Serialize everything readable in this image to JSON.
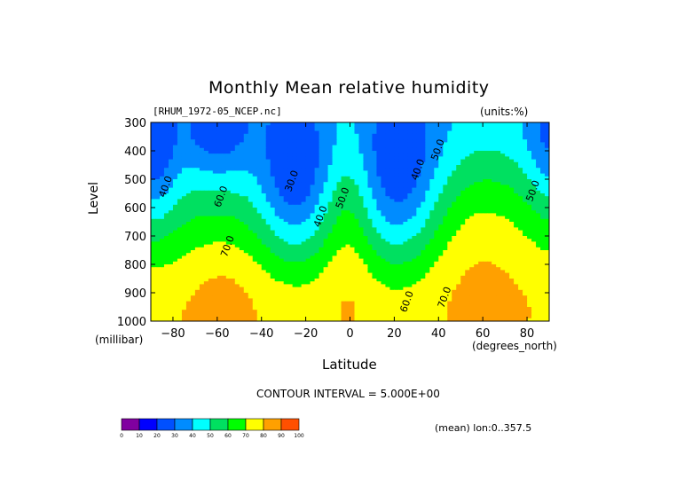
{
  "chart_data": {
    "type": "heatmap",
    "title": "Monthly Mean relative humidity",
    "file_label": "[RHUM_1972-05_NCEP.nc]",
    "units_label": "(units:%)",
    "ylabel": "Level",
    "ylabel_units": "(millibar)",
    "xlabel": "Latitude",
    "xlabel_units": "(degrees_north)",
    "x_ticks": [
      -80,
      -60,
      -40,
      -20,
      0,
      20,
      40,
      60,
      80
    ],
    "y_ticks": [
      300,
      400,
      500,
      600,
      700,
      800,
      900,
      1000
    ],
    "xlim": [
      -90,
      90
    ],
    "ylim": [
      1000,
      300
    ],
    "contour_interval_text": "CONTOUR INTERVAL = 5.000E+00",
    "mean_text": "(mean) lon:0..357.5",
    "colorbar": {
      "ticks": [
        0,
        10,
        20,
        30,
        40,
        50,
        60,
        70,
        80,
        90,
        100
      ],
      "colors": [
        "#8000a0",
        "#0000ff",
        "#0050ff",
        "#008cff",
        "#00ffff",
        "#00e060",
        "#00ff00",
        "#ffff00",
        "#ffa000",
        "#ff5000",
        "#ff0000"
      ]
    },
    "contour_labels": [
      {
        "text": "30.0",
        "lat": -25,
        "lev": 510
      },
      {
        "text": "40.0",
        "lat": -12,
        "lev": 635
      },
      {
        "text": "50.0",
        "lat": -2,
        "lev": 570
      },
      {
        "text": "40.0",
        "lat": 32,
        "lev": 470
      },
      {
        "text": "50.0",
        "lat": 41,
        "lev": 400
      },
      {
        "text": "60.0",
        "lat": -57,
        "lev": 565
      },
      {
        "text": "70.0",
        "lat": -54,
        "lev": 740
      },
      {
        "text": "40.0",
        "lat": -82,
        "lev": 530
      },
      {
        "text": "60.0",
        "lat": 27,
        "lev": 935
      },
      {
        "text": "70.0",
        "lat": 44,
        "lev": 920
      },
      {
        "text": "50.0",
        "lat": 84,
        "lev": 545
      }
    ]
  }
}
